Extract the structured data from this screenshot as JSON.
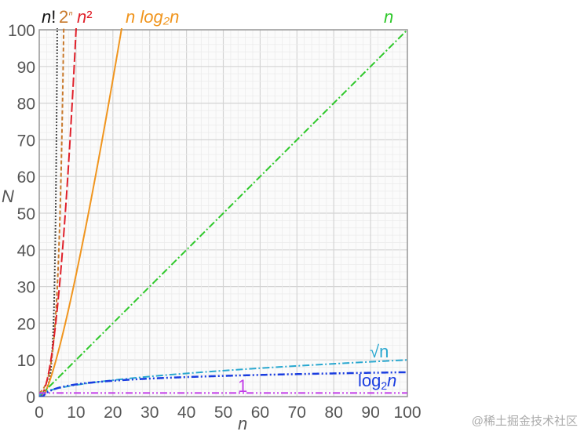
{
  "chart_data": {
    "type": "line",
    "title": "",
    "xlabel": "n",
    "ylabel": "N",
    "xlim": [
      0,
      100
    ],
    "ylim": [
      0,
      100
    ],
    "xticks": [
      "0",
      "10",
      "20",
      "30",
      "40",
      "50",
      "60",
      "70",
      "80",
      "90",
      "100"
    ],
    "yticks": [
      "0",
      "10",
      "20",
      "30",
      "40",
      "50",
      "60",
      "70",
      "80",
      "90",
      "100"
    ],
    "grid": true,
    "series": [
      {
        "name": "n!",
        "label_main": "n",
        "label_suffix": "!",
        "fn": "factorial",
        "color": "#111111",
        "dash": "dotted",
        "x": [
          0,
          1,
          2,
          3,
          4,
          5
        ],
        "y": [
          1,
          1,
          2,
          6,
          24,
          120
        ]
      },
      {
        "name": "2ⁿ",
        "label_main": "2",
        "label_suffix": "ⁿ",
        "fn": "exp2",
        "color": "#c8782a",
        "dash": "dashed",
        "x": [
          0,
          2,
          4,
          6,
          7
        ],
        "y": [
          1,
          4,
          16,
          64,
          128
        ]
      },
      {
        "name": "n²",
        "label_main": "n",
        "label_suffix": "²",
        "fn": "square",
        "color": "#e0202a",
        "dash": "long-dash",
        "x": [
          0,
          2,
          4,
          6,
          8,
          10
        ],
        "y": [
          0,
          4,
          16,
          36,
          64,
          100
        ]
      },
      {
        "name": "n log₂n",
        "fn": "nlogn",
        "color": "#f0951e",
        "dash": "solid",
        "x": [
          1,
          5,
          10,
          15,
          20,
          22.5
        ],
        "y": [
          0,
          11.6,
          33.2,
          58.6,
          86.4,
          101
        ]
      },
      {
        "name": "n",
        "fn": "linear",
        "color": "#2ec82a",
        "dash": "dash-dot",
        "x": [
          0,
          100
        ],
        "y": [
          0,
          100
        ]
      },
      {
        "name": "√n",
        "fn": "sqrt",
        "color": "#2aa8d0",
        "dash": "dash-dot",
        "x": [
          0,
          25,
          50,
          100
        ],
        "y": [
          0,
          5,
          7.07,
          10
        ]
      },
      {
        "name": "log₂n",
        "label_main": "log",
        "label_sub": "2",
        "label_var": "n",
        "fn": "log2",
        "color": "#1a3de0",
        "dash": "dash-dot-dot",
        "x": [
          1,
          10,
          50,
          100
        ],
        "y": [
          0,
          3.32,
          5.64,
          6.64
        ]
      },
      {
        "name": "1",
        "fn": "const",
        "color": "#c23de8",
        "dash": "dash-dot-dot",
        "x": [
          0,
          100
        ],
        "y": [
          1,
          1
        ]
      }
    ]
  },
  "watermark": "@稀土掘金技术社区"
}
